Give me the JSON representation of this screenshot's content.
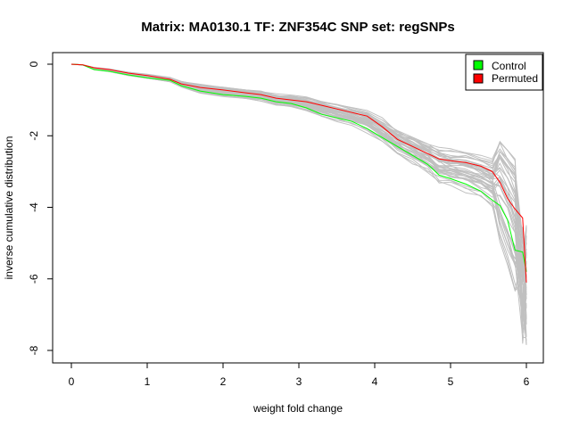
{
  "chart_data": {
    "type": "line",
    "title": "Matrix: MA0130.1 TF: ZNF354C SNP set: regSNPs",
    "xlabel": "weight fold change",
    "ylabel": "inverse cumulative distribution",
    "xlim": [
      0,
      6
    ],
    "ylim": [
      -8,
      0
    ],
    "xticks": [
      0,
      1,
      2,
      3,
      4,
      5,
      6
    ],
    "yticks": [
      0,
      -2,
      -4,
      -6,
      -8
    ],
    "legend": {
      "position": "top-right",
      "entries": [
        {
          "label": "Control",
          "color": "#00ff00"
        },
        {
          "label": "Permuted",
          "color": "#ff0000"
        }
      ]
    },
    "background_series": {
      "color": "#c0c0c0",
      "count": 40,
      "note_visible": false
    },
    "x": [
      0,
      0.15,
      0.3,
      0.5,
      0.75,
      1.0,
      1.3,
      1.45,
      1.7,
      2.0,
      2.3,
      2.5,
      2.7,
      2.9,
      3.1,
      3.3,
      3.5,
      3.7,
      3.9,
      4.1,
      4.3,
      4.5,
      4.7,
      4.85,
      5.0,
      5.2,
      5.4,
      5.55,
      5.65,
      5.75,
      5.85,
      5.95,
      6.0
    ],
    "series": [
      {
        "name": "Control",
        "color": "#00ff00",
        "values": [
          0,
          -0.02,
          -0.15,
          -0.2,
          -0.3,
          -0.38,
          -0.45,
          -0.6,
          -0.75,
          -0.85,
          -0.9,
          -0.95,
          -1.05,
          -1.1,
          -1.22,
          -1.4,
          -1.5,
          -1.6,
          -1.8,
          -2.05,
          -2.3,
          -2.55,
          -2.8,
          -3.1,
          -3.2,
          -3.35,
          -3.55,
          -3.8,
          -3.95,
          -4.35,
          -5.2,
          -5.25,
          -5.8
        ]
      },
      {
        "name": "Permuted",
        "color": "#ff0000",
        "values": [
          0,
          -0.02,
          -0.1,
          -0.15,
          -0.25,
          -0.32,
          -0.42,
          -0.55,
          -0.65,
          -0.72,
          -0.8,
          -0.85,
          -0.95,
          -1.0,
          -1.05,
          -1.15,
          -1.25,
          -1.35,
          -1.45,
          -1.75,
          -2.1,
          -2.3,
          -2.5,
          -2.65,
          -2.7,
          -2.75,
          -2.85,
          -3.0,
          -3.3,
          -3.75,
          -4.05,
          -4.3,
          -6.1
        ]
      }
    ]
  }
}
